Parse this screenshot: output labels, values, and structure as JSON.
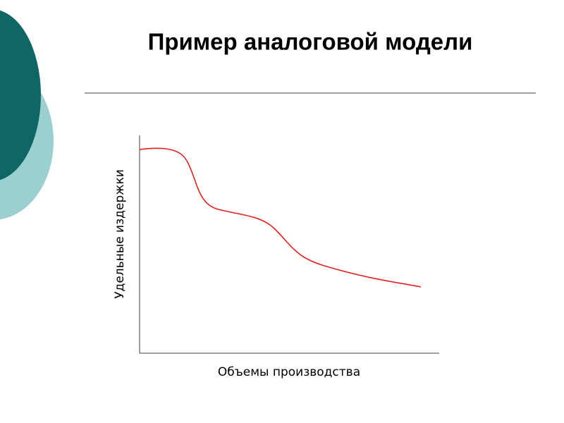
{
  "slide": {
    "title": "Пример аналоговой модели",
    "y_axis_label": "Удельные издержки",
    "x_axis_label": "Объемы производства"
  }
}
